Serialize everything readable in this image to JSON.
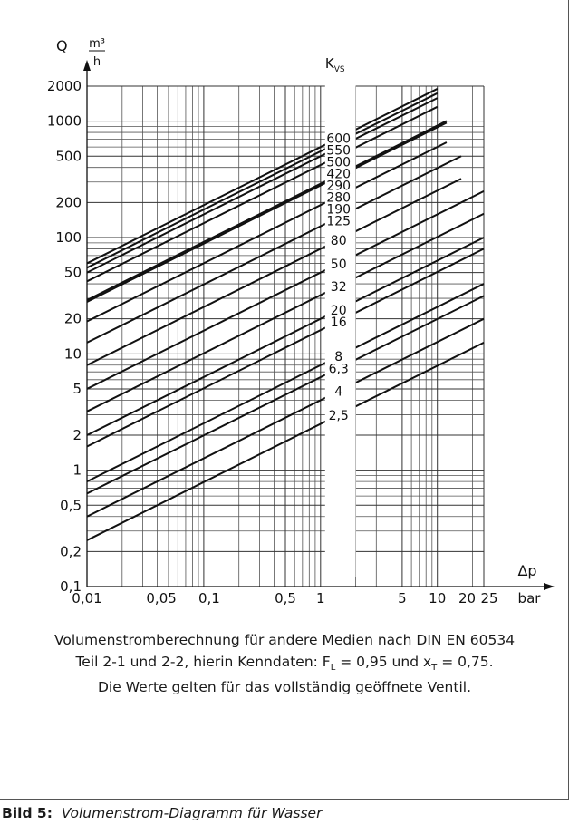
{
  "chart_data": {
    "type": "line",
    "x_scale": "log",
    "y_scale": "log",
    "xlim": [
      0.01,
      25
    ],
    "ylim": [
      0.1,
      2000
    ],
    "grid": true,
    "ylabel": {
      "symbol": "Q",
      "unit_num": "m³",
      "unit_den": "h"
    },
    "xlabel": {
      "symbol": "Δp",
      "unit": "bar"
    },
    "series_title": {
      "main": "K",
      "sub": "VS"
    },
    "x_tick_labels": [
      {
        "v": 0.01,
        "t": "0,01"
      },
      {
        "v": 0.05,
        "t": "0,05"
      },
      {
        "v": 0.1,
        "t": "0,1"
      },
      {
        "v": 0.5,
        "t": "0,5"
      },
      {
        "v": 1,
        "t": "1"
      },
      {
        "v": 5,
        "t": "5"
      },
      {
        "v": 10,
        "t": "10"
      },
      {
        "v": 20,
        "t": "20"
      },
      {
        "v": 25,
        "t": "25"
      }
    ],
    "y_tick_labels": [
      {
        "v": 2000,
        "t": "2000"
      },
      {
        "v": 1000,
        "t": "1000"
      },
      {
        "v": 500,
        "t": "500"
      },
      {
        "v": 200,
        "t": "200"
      },
      {
        "v": 100,
        "t": "100"
      },
      {
        "v": 50,
        "t": "50"
      },
      {
        "v": 20,
        "t": "20"
      },
      {
        "v": 10,
        "t": "10"
      },
      {
        "v": 5,
        "t": "5"
      },
      {
        "v": 2,
        "t": "2"
      },
      {
        "v": 1,
        "t": "1"
      },
      {
        "v": 0.5,
        "t": "0,5"
      },
      {
        "v": 0.2,
        "t": "0,2"
      },
      {
        "v": 0.1,
        "t": "0,1"
      }
    ],
    "series": [
      {
        "name": "600",
        "kvs": 600,
        "x": [
          0.01,
          10
        ],
        "y": [
          60,
          1897
        ]
      },
      {
        "name": "550",
        "kvs": 550,
        "x": [
          0.01,
          10
        ],
        "y": [
          55,
          1739
        ]
      },
      {
        "name": "500",
        "kvs": 500,
        "x": [
          0.01,
          10
        ],
        "y": [
          50,
          1581
        ]
      },
      {
        "name": "420",
        "kvs": 420,
        "x": [
          0.01,
          10
        ],
        "y": [
          42,
          1328
        ]
      },
      {
        "name": "290",
        "kvs": 290,
        "x": [
          0.01,
          12
        ],
        "y": [
          29,
          1005
        ]
      },
      {
        "name": "280",
        "kvs": 280,
        "x": [
          0.01,
          12
        ],
        "y": [
          28,
          970
        ]
      },
      {
        "name": "190",
        "kvs": 190,
        "x": [
          0.01,
          12
        ],
        "y": [
          19,
          658
        ]
      },
      {
        "name": "125",
        "kvs": 125,
        "x": [
          0.01,
          16
        ],
        "y": [
          12.5,
          500
        ]
      },
      {
        "name": "80",
        "kvs": 80,
        "x": [
          0.01,
          16
        ],
        "y": [
          8,
          320
        ]
      },
      {
        "name": "50",
        "kvs": 50,
        "x": [
          0.01,
          25
        ],
        "y": [
          5,
          250
        ]
      },
      {
        "name": "32",
        "kvs": 32,
        "x": [
          0.01,
          25
        ],
        "y": [
          3.2,
          160
        ]
      },
      {
        "name": "20",
        "kvs": 20,
        "x": [
          0.01,
          25
        ],
        "y": [
          2,
          100
        ]
      },
      {
        "name": "16",
        "kvs": 16,
        "x": [
          0.01,
          25
        ],
        "y": [
          1.6,
          80
        ]
      },
      {
        "name": "8",
        "kvs": 8,
        "x": [
          0.01,
          25
        ],
        "y": [
          0.8,
          40
        ]
      },
      {
        "name": "6,3",
        "kvs": 6.3,
        "x": [
          0.01,
          25
        ],
        "y": [
          0.63,
          31.5
        ]
      },
      {
        "name": "4",
        "kvs": 4,
        "x": [
          0.01,
          25
        ],
        "y": [
          0.4,
          20
        ]
      },
      {
        "name": "2,5",
        "kvs": 2.5,
        "x": [
          0.01,
          25
        ],
        "y": [
          0.25,
          12.5
        ]
      }
    ]
  },
  "notes": {
    "line1": "Volumenstromberechnung für andere Medien nach DIN EN 60534",
    "line2_a": "Teil 2-1 und 2-2, hierin Kenndaten: F",
    "line2_sub1": "L",
    "line2_b": " = 0,95 und x",
    "line2_sub2": "T",
    "line2_c": " = 0,75.",
    "line3": "Die Werte gelten für das vollständig geöffnete Ventil."
  },
  "caption": {
    "label": "Bild 5:",
    "title": "Volumenstrom-Diagramm für Wasser"
  }
}
